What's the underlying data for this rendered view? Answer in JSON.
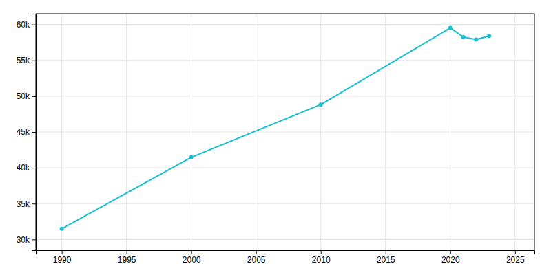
{
  "chart_data": {
    "type": "line",
    "x": [
      1990,
      2000,
      2010,
      2020,
      2021,
      2022,
      2023
    ],
    "values": [
      31487,
      41464,
      48821,
      59527,
      58271,
      57900,
      58400
    ],
    "color": "#17BECF",
    "marker": "circle",
    "grid": true,
    "xlim": [
      1988,
      2026.5
    ],
    "ylim": [
      28500,
      61500
    ],
    "xticks": [
      1990,
      1995,
      2000,
      2005,
      2010,
      2015,
      2020,
      2025
    ],
    "yticks": [
      {
        "value": 30000,
        "label": "30k"
      },
      {
        "value": 35000,
        "label": "35k"
      },
      {
        "value": 40000,
        "label": "40k"
      },
      {
        "value": 45000,
        "label": "45k"
      },
      {
        "value": 50000,
        "label": "50k"
      },
      {
        "value": 55000,
        "label": "55k"
      },
      {
        "value": 60000,
        "label": "60k"
      }
    ]
  }
}
